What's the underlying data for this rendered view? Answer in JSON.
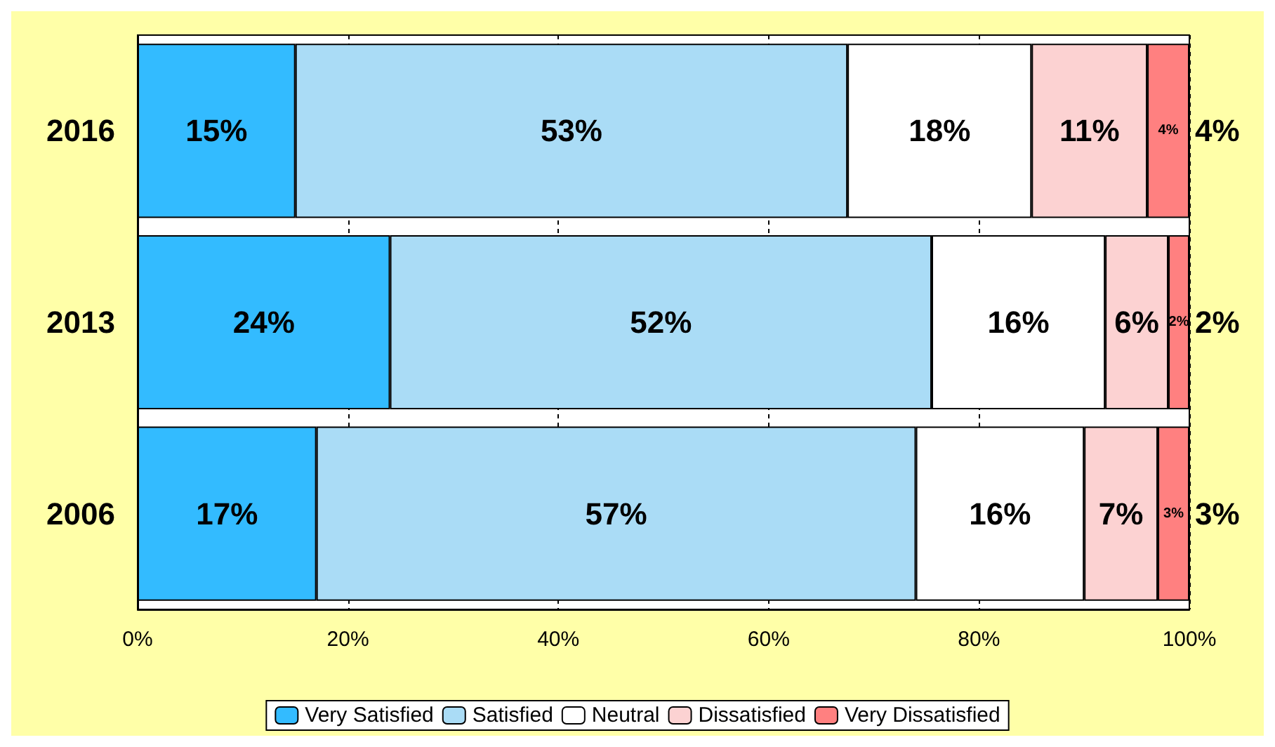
{
  "chart_data": {
    "type": "bar",
    "orientation": "horizontal",
    "stacked": true,
    "categories": [
      "2016",
      "2013",
      "2006"
    ],
    "series": [
      {
        "name": "Very Satisfied",
        "color": "#33bbff",
        "values": [
          15,
          24,
          17
        ],
        "value_labels": [
          "15%",
          "24%",
          "17%"
        ]
      },
      {
        "name": "Satisfied",
        "color": "#aadcf6",
        "values": [
          52.5,
          51.5,
          57
        ],
        "value_labels": [
          "53%",
          "52%",
          "57%"
        ]
      },
      {
        "name": "Neutral",
        "color": "#ffffff",
        "values": [
          17.5,
          16.5,
          16
        ],
        "value_labels": [
          "18%",
          "16%",
          "16%"
        ]
      },
      {
        "name": "Dissatisfied",
        "color": "#fcd2d2",
        "values": [
          11,
          6,
          7
        ],
        "value_labels": [
          "11%",
          "6%",
          "7%"
        ]
      },
      {
        "name": "Very Dissatisfied",
        "color": "#ff8080",
        "values": [
          4,
          2,
          3
        ],
        "value_labels": [
          "4%",
          "2%",
          "3%"
        ]
      }
    ],
    "annotations": [
      "4%",
      "2%",
      "3%"
    ],
    "xlim": [
      0,
      100
    ],
    "xticks": [
      {
        "value": 0,
        "label": "0%"
      },
      {
        "value": 20,
        "label": "20%"
      },
      {
        "value": 40,
        "label": "40%"
      },
      {
        "value": 60,
        "label": "60%"
      },
      {
        "value": 80,
        "label": "80%"
      },
      {
        "value": 100,
        "label": "100%"
      }
    ],
    "grid": "x",
    "legend": "bottom"
  }
}
